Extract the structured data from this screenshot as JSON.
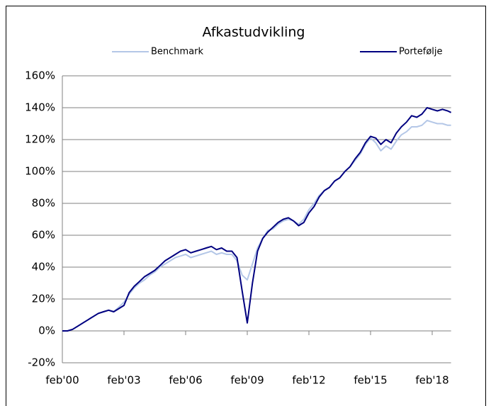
{
  "chart_data": {
    "type": "line",
    "title": "Afkastudvikling",
    "x": [
      "2000-02",
      "2000-05",
      "2000-08",
      "2000-11",
      "2001-02",
      "2001-05",
      "2001-08",
      "2001-11",
      "2002-02",
      "2002-05",
      "2002-08",
      "2002-11",
      "2003-02",
      "2003-05",
      "2003-08",
      "2003-11",
      "2004-02",
      "2004-05",
      "2004-08",
      "2004-11",
      "2005-02",
      "2005-05",
      "2005-08",
      "2005-11",
      "2006-02",
      "2006-05",
      "2006-08",
      "2006-11",
      "2007-02",
      "2007-05",
      "2007-08",
      "2007-11",
      "2008-02",
      "2008-05",
      "2008-08",
      "2008-11",
      "2009-02",
      "2009-05",
      "2009-08",
      "2009-11",
      "2010-02",
      "2010-05",
      "2010-08",
      "2010-11",
      "2011-02",
      "2011-05",
      "2011-08",
      "2011-11",
      "2012-02",
      "2012-05",
      "2012-08",
      "2012-11",
      "2013-02",
      "2013-05",
      "2013-08",
      "2013-11",
      "2014-02",
      "2014-05",
      "2014-08",
      "2014-11",
      "2015-02",
      "2015-05",
      "2015-08",
      "2015-11",
      "2016-02",
      "2016-05",
      "2016-08",
      "2016-11",
      "2017-02",
      "2017-05",
      "2017-08",
      "2017-11",
      "2018-02",
      "2018-05",
      "2018-08",
      "2018-11",
      "2019-01"
    ],
    "series": [
      {
        "name": "Benchmark",
        "color": "#b4c7e7",
        "values": [
          0,
          0,
          1,
          3,
          5,
          7,
          9,
          11,
          12,
          13,
          12,
          15,
          18,
          23,
          27,
          30,
          32,
          35,
          37,
          40,
          42,
          44,
          46,
          47,
          48,
          46,
          47,
          48,
          49,
          50,
          48,
          49,
          48,
          48,
          44,
          35,
          32,
          42,
          52,
          58,
          63,
          64,
          67,
          69,
          70,
          69,
          67,
          70,
          76,
          80,
          85,
          88,
          90,
          94,
          96,
          100,
          103,
          107,
          111,
          117,
          121,
          118,
          113,
          116,
          114,
          119,
          123,
          125,
          128,
          128,
          129,
          132,
          131,
          130,
          130,
          129,
          129
        ]
      },
      {
        "name": "Portefølje",
        "color": "#000080",
        "values": [
          0,
          0,
          1,
          3,
          5,
          7,
          9,
          11,
          12,
          13,
          12,
          14,
          16,
          24,
          28,
          31,
          34,
          36,
          38,
          41,
          44,
          46,
          48,
          50,
          51,
          49,
          50,
          51,
          52,
          53,
          51,
          52,
          50,
          50,
          46,
          25,
          5,
          30,
          50,
          58,
          62,
          65,
          68,
          70,
          71,
          69,
          66,
          68,
          74,
          78,
          84,
          88,
          90,
          94,
          96,
          100,
          103,
          108,
          112,
          118,
          122,
          121,
          117,
          120,
          118,
          124,
          128,
          131,
          135,
          134,
          136,
          140,
          139,
          138,
          139,
          138,
          137
        ]
      }
    ],
    "xlim": [
      "2000-02",
      "2019-01"
    ],
    "xticks": [
      {
        "value": "2000-02",
        "label": "feb'00"
      },
      {
        "value": "2003-02",
        "label": "feb'03"
      },
      {
        "value": "2006-02",
        "label": "feb'06"
      },
      {
        "value": "2009-02",
        "label": "feb'09"
      },
      {
        "value": "2012-02",
        "label": "feb'12"
      },
      {
        "value": "2015-02",
        "label": "feb'15"
      },
      {
        "value": "2018-02",
        "label": "feb'18"
      }
    ],
    "ylim": [
      -20,
      160
    ],
    "yticks": [
      {
        "value": -20,
        "label": "-20%"
      },
      {
        "value": 0,
        "label": "0%"
      },
      {
        "value": 20,
        "label": "20%"
      },
      {
        "value": 40,
        "label": "40%"
      },
      {
        "value": 60,
        "label": "60%"
      },
      {
        "value": 80,
        "label": "80%"
      },
      {
        "value": 100,
        "label": "100%"
      },
      {
        "value": 120,
        "label": "120%"
      },
      {
        "value": 140,
        "label": "140%"
      },
      {
        "value": 160,
        "label": "160%"
      }
    ],
    "grid": true,
    "legend": "top"
  }
}
